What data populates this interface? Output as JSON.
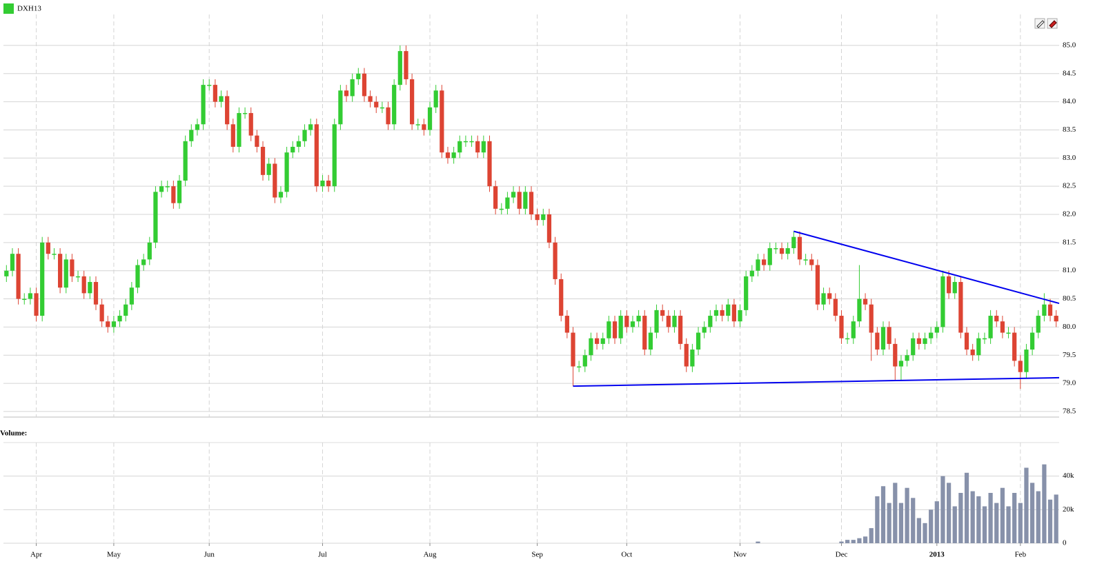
{
  "chart_data": {
    "type": "candlestick",
    "legend": "DXH13",
    "volume_title": "Volume:",
    "up_color": "#33cc33",
    "down_color": "#dd4433",
    "volume_color": "#8791aa",
    "trendline_color": "#0000ee",
    "grid": true,
    "open": [
      80.9,
      81.0,
      81.3,
      80.5,
      80.5,
      80.6,
      80.2,
      81.5,
      81.3,
      81.3,
      80.7,
      81.2,
      80.9,
      80.9,
      80.6,
      80.8,
      80.4,
      80.1,
      80.0,
      80.1,
      80.2,
      80.4,
      80.7,
      81.1,
      81.2,
      81.5,
      82.4,
      82.5,
      82.5,
      82.2,
      82.6,
      83.3,
      83.5,
      83.6,
      84.3,
      84.3,
      84.0,
      84.1,
      83.6,
      83.2,
      83.8,
      83.8,
      83.4,
      83.2,
      82.7,
      82.9,
      82.3,
      82.4,
      83.1,
      83.2,
      83.3,
      83.5,
      83.6,
      82.5,
      82.6,
      82.5,
      83.6,
      84.2,
      84.1,
      84.4,
      84.5,
      84.1,
      84.0,
      83.9,
      83.9,
      83.6,
      84.3,
      84.9,
      84.4,
      83.6,
      83.6,
      83.5,
      83.9,
      84.2,
      83.1,
      83.0,
      83.1,
      83.3,
      83.3,
      83.3,
      83.1,
      83.3,
      82.5,
      82.1,
      82.1,
      82.3,
      82.4,
      82.1,
      82.4,
      82.0,
      81.9,
      82.0,
      81.5,
      80.85,
      80.2,
      79.9,
      79.3,
      79.3,
      79.5,
      79.8,
      79.7,
      79.8,
      80.1,
      79.8,
      80.2,
      80.0,
      80.1,
      80.2,
      79.6,
      79.9,
      80.3,
      80.2,
      80.0,
      80.2,
      79.7,
      79.3,
      79.6,
      79.9,
      80.0,
      80.2,
      80.3,
      80.2,
      80.4,
      80.1,
      80.3,
      80.9,
      81.0,
      81.2,
      81.1,
      81.4,
      81.4,
      81.3,
      81.4,
      81.6,
      81.2,
      81.2,
      81.1,
      80.4,
      80.6,
      80.5,
      80.2,
      79.8,
      79.8,
      80.1,
      80.5,
      80.4,
      79.9,
      79.6,
      80.0,
      79.7,
      79.3,
      79.4,
      79.5,
      79.8,
      79.7,
      79.8,
      79.9,
      80.0,
      80.9,
      80.6,
      80.8,
      79.9,
      79.6,
      79.5,
      79.8,
      79.8,
      80.2,
      80.1,
      79.9,
      79.9,
      79.4,
      79.2,
      79.6,
      79.9,
      80.2,
      80.4,
      80.2
    ],
    "high": [
      81.1,
      81.4,
      81.4,
      80.6,
      80.7,
      80.7,
      81.6,
      81.6,
      81.4,
      81.4,
      81.3,
      81.3,
      81.0,
      81.0,
      80.9,
      80.9,
      80.5,
      80.2,
      80.2,
      80.3,
      80.5,
      80.8,
      81.2,
      81.3,
      81.6,
      82.5,
      82.6,
      82.6,
      82.6,
      82.7,
      83.4,
      83.6,
      83.7,
      84.4,
      84.4,
      84.4,
      84.2,
      84.2,
      83.7,
      83.9,
      83.9,
      83.9,
      83.5,
      83.3,
      83.0,
      83.0,
      82.5,
      83.2,
      83.3,
      83.4,
      83.6,
      83.7,
      83.7,
      82.7,
      82.7,
      83.7,
      84.3,
      84.3,
      84.5,
      84.6,
      84.6,
      84.2,
      84.1,
      84.0,
      84.0,
      84.4,
      85.0,
      85.0,
      84.5,
      83.7,
      83.7,
      84.0,
      84.3,
      84.3,
      83.2,
      83.2,
      83.4,
      83.4,
      83.4,
      83.4,
      83.4,
      83.4,
      82.6,
      82.2,
      82.4,
      82.5,
      82.5,
      82.5,
      82.5,
      82.1,
      82.1,
      82.1,
      81.6,
      80.95,
      80.3,
      80.0,
      79.4,
      79.6,
      79.9,
      79.9,
      79.9,
      80.2,
      80.2,
      80.3,
      80.3,
      80.2,
      80.3,
      80.3,
      80.0,
      80.4,
      80.4,
      80.3,
      80.3,
      80.3,
      79.8,
      79.7,
      80.0,
      80.1,
      80.3,
      80.4,
      80.4,
      80.5,
      80.5,
      80.4,
      81.0,
      81.1,
      81.3,
      81.3,
      81.5,
      81.5,
      81.5,
      81.5,
      81.7,
      81.7,
      81.3,
      81.3,
      81.2,
      80.7,
      80.7,
      80.6,
      80.3,
      79.9,
      80.2,
      81.1,
      80.6,
      80.5,
      80.0,
      80.1,
      80.1,
      79.8,
      79.5,
      79.6,
      79.9,
      79.9,
      79.9,
      80.0,
      80.1,
      81.0,
      81.0,
      80.9,
      80.9,
      80.0,
      79.7,
      79.9,
      79.9,
      80.3,
      80.3,
      80.2,
      80.0,
      80.0,
      79.5,
      79.7,
      80.0,
      80.3,
      80.6,
      80.5,
      80.3
    ],
    "low": [
      80.8,
      80.9,
      80.4,
      80.4,
      80.4,
      80.1,
      80.1,
      81.2,
      81.2,
      80.6,
      80.6,
      80.8,
      80.8,
      80.5,
      80.5,
      80.3,
      80.0,
      79.9,
      79.9,
      80.0,
      80.1,
      80.3,
      80.6,
      81.0,
      81.1,
      81.4,
      82.3,
      82.4,
      82.1,
      82.1,
      82.5,
      83.2,
      83.4,
      83.5,
      84.2,
      83.9,
      83.9,
      83.5,
      83.1,
      83.1,
      83.7,
      83.3,
      83.1,
      82.6,
      82.6,
      82.2,
      82.2,
      82.3,
      83.0,
      83.1,
      83.2,
      83.4,
      82.4,
      82.4,
      82.4,
      82.4,
      83.5,
      84.0,
      84.0,
      84.3,
      84.0,
      83.9,
      83.8,
      83.8,
      83.5,
      83.5,
      84.2,
      84.3,
      83.5,
      83.5,
      83.4,
      83.4,
      83.8,
      83.0,
      82.9,
      82.9,
      83.0,
      83.2,
      83.2,
      83.0,
      83.0,
      82.4,
      82.0,
      82.0,
      82.0,
      82.2,
      82.0,
      82.0,
      81.9,
      81.8,
      81.8,
      81.4,
      80.75,
      80.1,
      79.8,
      78.95,
      79.2,
      79.2,
      79.4,
      79.6,
      79.6,
      79.7,
      79.7,
      79.7,
      79.9,
      79.9,
      80.0,
      79.5,
      79.5,
      79.8,
      80.1,
      79.9,
      79.9,
      79.6,
      79.2,
      79.2,
      79.5,
      79.8,
      79.9,
      80.1,
      80.1,
      80.1,
      80.0,
      80.0,
      80.2,
      80.8,
      80.9,
      81.0,
      81.0,
      81.3,
      81.2,
      81.2,
      81.3,
      81.1,
      81.1,
      81.0,
      80.3,
      80.3,
      80.4,
      80.1,
      79.7,
      79.7,
      79.7,
      80.0,
      80.3,
      79.4,
      79.5,
      79.5,
      79.6,
      79.05,
      79.05,
      79.3,
      79.4,
      79.6,
      79.6,
      79.7,
      79.8,
      79.9,
      80.5,
      80.5,
      79.8,
      79.5,
      79.4,
      79.4,
      79.7,
      79.7,
      80.0,
      79.8,
      79.8,
      79.3,
      78.9,
      79.1,
      79.5,
      79.8,
      80.1,
      80.1,
      80.0
    ],
    "close": [
      81.0,
      81.3,
      80.5,
      80.5,
      80.6,
      80.2,
      81.5,
      81.3,
      81.3,
      80.7,
      81.2,
      80.9,
      80.9,
      80.6,
      80.8,
      80.4,
      80.1,
      80.0,
      80.1,
      80.2,
      80.4,
      80.7,
      81.1,
      81.2,
      81.5,
      82.4,
      82.5,
      82.5,
      82.2,
      82.6,
      83.3,
      83.5,
      83.6,
      84.3,
      84.3,
      84.0,
      84.1,
      83.6,
      83.2,
      83.8,
      83.8,
      83.4,
      83.2,
      82.7,
      82.9,
      82.3,
      82.4,
      83.1,
      83.2,
      83.3,
      83.5,
      83.6,
      82.5,
      82.6,
      82.5,
      83.6,
      84.2,
      84.1,
      84.4,
      84.5,
      84.1,
      84.0,
      83.9,
      83.9,
      83.6,
      84.3,
      84.9,
      84.4,
      83.6,
      83.6,
      83.5,
      83.9,
      84.2,
      83.1,
      83.0,
      83.1,
      83.3,
      83.3,
      83.3,
      83.1,
      83.3,
      82.5,
      82.1,
      82.1,
      82.3,
      82.4,
      82.1,
      82.4,
      82.0,
      81.9,
      82.0,
      81.5,
      80.85,
      80.2,
      79.9,
      79.3,
      79.3,
      79.5,
      79.8,
      79.7,
      79.8,
      80.1,
      79.8,
      80.2,
      80.0,
      80.1,
      80.2,
      79.6,
      79.9,
      80.3,
      80.2,
      80.0,
      80.2,
      79.7,
      79.3,
      79.6,
      79.9,
      80.0,
      80.2,
      80.3,
      80.2,
      80.4,
      80.1,
      80.3,
      80.9,
      81.0,
      81.2,
      81.1,
      81.4,
      81.4,
      81.3,
      81.4,
      81.6,
      81.2,
      81.2,
      81.1,
      80.4,
      80.6,
      80.5,
      80.2,
      79.8,
      79.8,
      80.1,
      80.5,
      80.4,
      79.9,
      79.6,
      80.0,
      79.7,
      79.3,
      79.4,
      79.5,
      79.8,
      79.7,
      79.8,
      79.9,
      80.0,
      80.9,
      80.6,
      80.8,
      79.9,
      79.6,
      79.5,
      79.8,
      79.8,
      80.2,
      80.1,
      79.9,
      79.9,
      79.4,
      79.2,
      79.6,
      79.9,
      80.2,
      80.4,
      80.2,
      80.1
    ],
    "volume": [
      0,
      0,
      0,
      0,
      0,
      0,
      0,
      0,
      0,
      0,
      0,
      0,
      0,
      0,
      0,
      0,
      0,
      0,
      0,
      0,
      0,
      0,
      0,
      0,
      0,
      0,
      0,
      0,
      0,
      0,
      0,
      0,
      0,
      0,
      0,
      0,
      0,
      0,
      0,
      0,
      0,
      0,
      0,
      0,
      0,
      0,
      0,
      0,
      0,
      0,
      0,
      0,
      0,
      0,
      0,
      0,
      0,
      0,
      0,
      0,
      0,
      0,
      0,
      0,
      0,
      0,
      0,
      0,
      0,
      0,
      0,
      0,
      0,
      0,
      0,
      0,
      0,
      0,
      0,
      0,
      0,
      0,
      0,
      0,
      0,
      0,
      0,
      0,
      0,
      0,
      0,
      0,
      0,
      0,
      0,
      0,
      0,
      0,
      0,
      0,
      0,
      0,
      0,
      0,
      0,
      0,
      0,
      0,
      0,
      0,
      0,
      0,
      0,
      0,
      0,
      0,
      0,
      0,
      0,
      0,
      0,
      0,
      0,
      0,
      0,
      0,
      1000,
      0,
      0,
      0,
      0,
      0,
      0,
      0,
      0,
      0,
      0,
      0,
      0,
      0,
      1000,
      2000,
      2000,
      3000,
      4000,
      9000,
      28000,
      34000,
      24000,
      36000,
      24000,
      33000,
      27000,
      15000,
      12000,
      20000,
      25000,
      40000,
      36000,
      22000,
      30000,
      42000,
      31000,
      28000,
      22000,
      30000,
      24000,
      33000,
      22000,
      30000,
      24000,
      45000,
      36000,
      31000,
      47000,
      26000,
      29000
    ],
    "ylim": [
      78.45,
      85.55
    ],
    "yticks": [
      {
        "value": 78.5,
        "label": "78.5"
      },
      {
        "value": 79,
        "label": "79.0"
      },
      79.5,
      {
        "value": 80,
        "label": "80.0"
      },
      80.5,
      {
        "value": 81,
        "label": "81.0"
      },
      81.5,
      {
        "value": 82,
        "label": "82.0"
      },
      82.5,
      {
        "value": 83,
        "label": "83.0"
      },
      83.5,
      {
        "value": 84,
        "label": "84.0"
      },
      84.5,
      {
        "value": 85,
        "label": "85.0"
      }
    ],
    "volume_ylim": [
      0,
      60000
    ],
    "volume_yticks": [
      0,
      {
        "value": 20000,
        "label": "20k"
      },
      {
        "value": 40000,
        "label": "40k"
      }
    ],
    "xticks": [
      {
        "value": 5,
        "label": "Apr"
      },
      {
        "value": 18,
        "label": "May"
      },
      {
        "value": 34,
        "label": "Jun"
      },
      {
        "value": 53,
        "label": "Jul"
      },
      {
        "value": 71,
        "label": "Aug"
      },
      {
        "value": 89,
        "label": "Sep"
      },
      {
        "value": 104,
        "label": "Oct"
      },
      {
        "value": 123,
        "label": "Nov"
      },
      {
        "value": 140,
        "label": "Dec"
      },
      {
        "value": 156,
        "label": "2013"
      },
      {
        "value": 170,
        "label": "Feb"
      }
    ],
    "trendlines": [
      {
        "x": [
          132,
          176.5
        ],
        "y": [
          81.7,
          80.42
        ]
      },
      {
        "x": [
          95,
          176.5
        ],
        "y": [
          78.95,
          79.1
        ]
      }
    ]
  }
}
